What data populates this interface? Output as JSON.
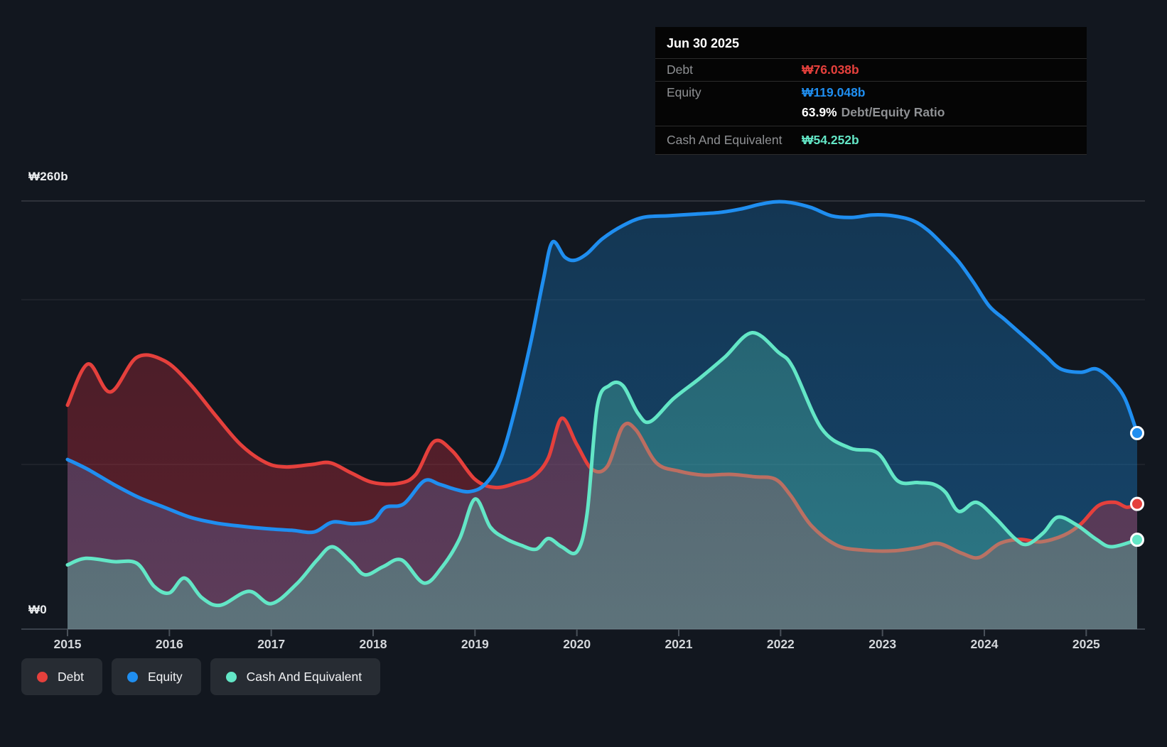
{
  "tooltip": {
    "date": "Jun 30 2025",
    "debt_label": "Debt",
    "debt_value": "₩76.038b",
    "equity_label": "Equity",
    "equity_value": "₩119.048b",
    "ratio_value": "63.9%",
    "ratio_label": "Debt/Equity Ratio",
    "cash_label": "Cash And Equivalent",
    "cash_value": "₩54.252b"
  },
  "legend": {
    "debt": "Debt",
    "equity": "Equity",
    "cash": "Cash And Equivalent"
  },
  "axes": {
    "y_top": "₩260b",
    "y_zero": "₩0",
    "years": [
      "2015",
      "2016",
      "2017",
      "2018",
      "2019",
      "2020",
      "2021",
      "2022",
      "2023",
      "2024",
      "2025"
    ]
  },
  "colors": {
    "background": "#12171f",
    "debt": "#e5403c",
    "equity": "#1f8ef0",
    "cash": "#63e6c6",
    "debt_fill_top": "rgba(205,45,62,0.26)",
    "debt_fill_bottom": "rgba(205,45,62,0.40)",
    "equity_fill_top": "rgba(25,125,200,0.30)",
    "equity_fill_bottom": "rgba(25,125,200,0.46)",
    "cash_fill_top": "rgba(90,220,185,0.22)",
    "cash_fill_bottom": "rgba(90,220,185,0.34)",
    "grid": "rgba(255,255,255,0.07)",
    "grid_top": "rgba(255,255,255,0.16)",
    "axis_line": "#3a414b",
    "tick": "#4a515a",
    "dot_ring": "#ffffff"
  },
  "chart_data": {
    "type": "area",
    "unit": "₩ billions (KRW)",
    "x_domain": [
      2015.0,
      2025.5
    ],
    "ylim": [
      0,
      260
    ],
    "gridline_values": [
      260,
      200,
      100,
      0
    ],
    "labeled_gridlines": {
      "260": "₩260b",
      "0": "₩0"
    },
    "last_point_date": "Jun 30 2025",
    "end_values": {
      "debt": 76.038,
      "equity": 119.048,
      "cash": 54.252
    },
    "series": [
      {
        "name": "Equity",
        "key": "equity",
        "points": [
          [
            2015.0,
            103
          ],
          [
            2015.2,
            97
          ],
          [
            2015.45,
            88
          ],
          [
            2015.7,
            80
          ],
          [
            2015.95,
            74
          ],
          [
            2016.2,
            68
          ],
          [
            2016.45,
            64.5
          ],
          [
            2016.7,
            62.5
          ],
          [
            2016.95,
            61
          ],
          [
            2017.2,
            60
          ],
          [
            2017.42,
            59
          ],
          [
            2017.6,
            65
          ],
          [
            2017.8,
            64
          ],
          [
            2018.0,
            66
          ],
          [
            2018.12,
            74
          ],
          [
            2018.3,
            76
          ],
          [
            2018.5,
            90
          ],
          [
            2018.65,
            88
          ],
          [
            2018.8,
            85
          ],
          [
            2018.95,
            83.5
          ],
          [
            2019.1,
            88
          ],
          [
            2019.25,
            103
          ],
          [
            2019.4,
            135
          ],
          [
            2019.55,
            175
          ],
          [
            2019.67,
            212
          ],
          [
            2019.76,
            235
          ],
          [
            2019.88,
            226
          ],
          [
            2019.98,
            224
          ],
          [
            2020.1,
            228
          ],
          [
            2020.25,
            237
          ],
          [
            2020.45,
            245
          ],
          [
            2020.65,
            250
          ],
          [
            2020.9,
            251
          ],
          [
            2021.15,
            252
          ],
          [
            2021.4,
            253
          ],
          [
            2021.6,
            255
          ],
          [
            2021.8,
            258
          ],
          [
            2021.95,
            259.5
          ],
          [
            2022.1,
            259
          ],
          [
            2022.3,
            256
          ],
          [
            2022.5,
            251
          ],
          [
            2022.7,
            250
          ],
          [
            2022.9,
            251.5
          ],
          [
            2023.1,
            251
          ],
          [
            2023.3,
            248
          ],
          [
            2023.45,
            242
          ],
          [
            2023.6,
            233
          ],
          [
            2023.75,
            223
          ],
          [
            2023.9,
            210
          ],
          [
            2024.05,
            196
          ],
          [
            2024.2,
            188
          ],
          [
            2024.42,
            176
          ],
          [
            2024.6,
            166
          ],
          [
            2024.75,
            158
          ],
          [
            2024.95,
            156
          ],
          [
            2025.1,
            158
          ],
          [
            2025.25,
            151
          ],
          [
            2025.38,
            140
          ],
          [
            2025.5,
            119.048
          ]
        ]
      },
      {
        "name": "Debt",
        "key": "debt",
        "points": [
          [
            2015.0,
            136
          ],
          [
            2015.2,
            161
          ],
          [
            2015.42,
            144
          ],
          [
            2015.68,
            165
          ],
          [
            2015.95,
            163
          ],
          [
            2016.2,
            149
          ],
          [
            2016.45,
            130
          ],
          [
            2016.7,
            112
          ],
          [
            2016.95,
            101
          ],
          [
            2017.15,
            98.5
          ],
          [
            2017.4,
            100
          ],
          [
            2017.58,
            101
          ],
          [
            2017.78,
            95
          ],
          [
            2018.0,
            89
          ],
          [
            2018.25,
            88.5
          ],
          [
            2018.42,
            94
          ],
          [
            2018.6,
            114
          ],
          [
            2018.78,
            108
          ],
          [
            2019.0,
            91
          ],
          [
            2019.2,
            86
          ],
          [
            2019.42,
            89
          ],
          [
            2019.58,
            93
          ],
          [
            2019.72,
            104
          ],
          [
            2019.85,
            128
          ],
          [
            2020.0,
            112
          ],
          [
            2020.15,
            97
          ],
          [
            2020.3,
            99
          ],
          [
            2020.45,
            123
          ],
          [
            2020.58,
            121
          ],
          [
            2020.78,
            101
          ],
          [
            2021.0,
            96
          ],
          [
            2021.25,
            93.5
          ],
          [
            2021.5,
            94
          ],
          [
            2021.75,
            92.5
          ],
          [
            2021.95,
            91
          ],
          [
            2022.1,
            81
          ],
          [
            2022.3,
            63
          ],
          [
            2022.55,
            51
          ],
          [
            2022.8,
            48
          ],
          [
            2023.1,
            47.5
          ],
          [
            2023.35,
            49.5
          ],
          [
            2023.55,
            52
          ],
          [
            2023.78,
            46
          ],
          [
            2023.95,
            43.5
          ],
          [
            2024.15,
            52
          ],
          [
            2024.35,
            54.5
          ],
          [
            2024.55,
            53
          ],
          [
            2024.78,
            57
          ],
          [
            2024.95,
            64
          ],
          [
            2025.12,
            75
          ],
          [
            2025.28,
            77
          ],
          [
            2025.4,
            74
          ],
          [
            2025.5,
            76.038
          ]
        ]
      },
      {
        "name": "Cash And Equivalent",
        "key": "cash",
        "points": [
          [
            2015.0,
            39
          ],
          [
            2015.18,
            43
          ],
          [
            2015.45,
            41
          ],
          [
            2015.68,
            40
          ],
          [
            2015.85,
            26
          ],
          [
            2016.0,
            22
          ],
          [
            2016.15,
            31
          ],
          [
            2016.32,
            19
          ],
          [
            2016.5,
            14.5
          ],
          [
            2016.78,
            23
          ],
          [
            2017.0,
            15.5
          ],
          [
            2017.25,
            27.5
          ],
          [
            2017.45,
            42
          ],
          [
            2017.6,
            50
          ],
          [
            2017.78,
            41
          ],
          [
            2017.92,
            33
          ],
          [
            2018.1,
            38
          ],
          [
            2018.28,
            42
          ],
          [
            2018.5,
            28
          ],
          [
            2018.68,
            38
          ],
          [
            2018.85,
            55
          ],
          [
            2019.0,
            79
          ],
          [
            2019.15,
            62
          ],
          [
            2019.3,
            55
          ],
          [
            2019.45,
            51
          ],
          [
            2019.6,
            48.5
          ],
          [
            2019.72,
            55
          ],
          [
            2019.85,
            50
          ],
          [
            2020.0,
            47
          ],
          [
            2020.1,
            70
          ],
          [
            2020.2,
            135
          ],
          [
            2020.32,
            148
          ],
          [
            2020.45,
            148
          ],
          [
            2020.6,
            131
          ],
          [
            2020.72,
            126
          ],
          [
            2020.95,
            140
          ],
          [
            2021.2,
            152
          ],
          [
            2021.45,
            165
          ],
          [
            2021.72,
            180
          ],
          [
            2021.98,
            168
          ],
          [
            2022.12,
            159
          ],
          [
            2022.4,
            122
          ],
          [
            2022.68,
            110
          ],
          [
            2022.95,
            107
          ],
          [
            2023.15,
            90
          ],
          [
            2023.35,
            89
          ],
          [
            2023.5,
            88
          ],
          [
            2023.62,
            83
          ],
          [
            2023.75,
            71.5
          ],
          [
            2023.92,
            77
          ],
          [
            2024.1,
            68
          ],
          [
            2024.3,
            55
          ],
          [
            2024.42,
            51.5
          ],
          [
            2024.58,
            58.5
          ],
          [
            2024.72,
            68
          ],
          [
            2024.9,
            63.5
          ],
          [
            2025.1,
            54.5
          ],
          [
            2025.25,
            50
          ],
          [
            2025.5,
            54.252
          ]
        ]
      }
    ]
  }
}
